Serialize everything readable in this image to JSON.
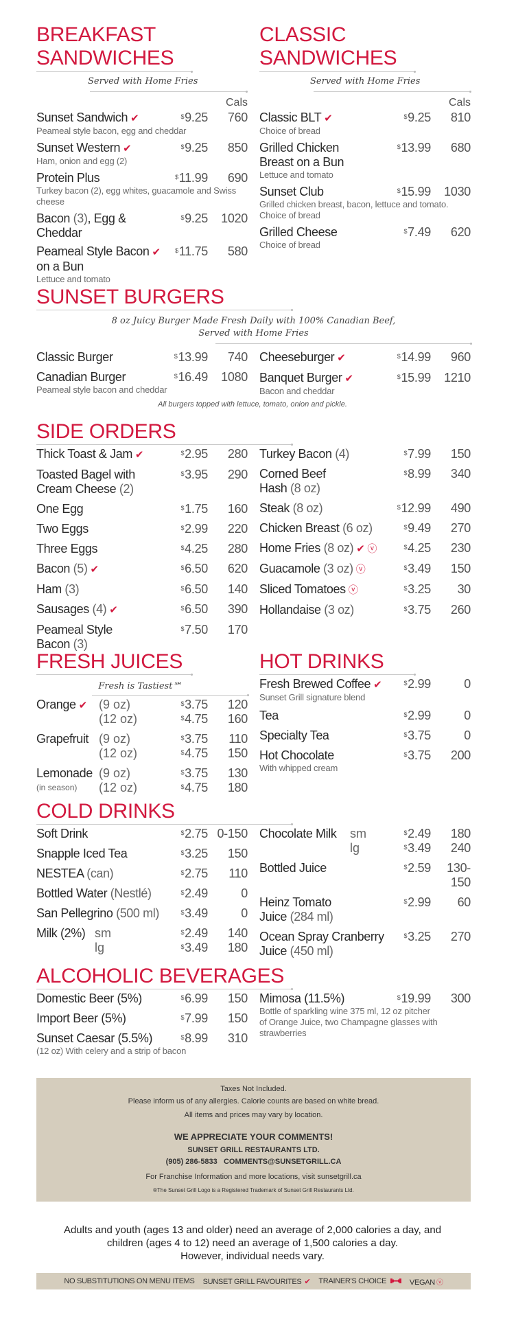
{
  "currency": "$",
  "cals_label": "Cals",
  "colors": {
    "accent": "#d2193f",
    "panel": "#d5cdbd"
  },
  "breakfast": {
    "title": "BREAKFAST\nSANDWICHES",
    "subtitle": "Served with Home Fries",
    "items": [
      {
        "name": "Sunset Sandwich",
        "fav": true,
        "price": "9.25",
        "cals": "760",
        "desc": "Peameal style bacon, egg and cheddar"
      },
      {
        "name": "Sunset Western",
        "fav": true,
        "price": "9.25",
        "cals": "850",
        "desc": "Ham, onion and egg (2)"
      },
      {
        "name": "Protein Plus",
        "price": "11.99",
        "cals": "690",
        "desc": "Turkey bacon (2), egg whites, guacamole and Swiss\ncheese"
      },
      {
        "name": "Bacon ",
        "note": "(3)",
        "rest": ", Egg &\nCheddar",
        "price": "9.25",
        "cals": "1020"
      },
      {
        "name": "Peameal Style Bacon",
        "fav": true,
        "tail": "\non a Bun",
        "price": "11.75",
        "cals": "580",
        "desc": "Lettuce and tomato"
      }
    ]
  },
  "classic": {
    "title": "CLASSIC\nSANDWICHES",
    "subtitle": "Served with Home Fries",
    "items": [
      {
        "name": "Classic BLT",
        "fav": true,
        "price": "9.25",
        "cals": "810",
        "desc": "Choice of bread"
      },
      {
        "name": "Grilled Chicken\nBreast on a Bun",
        "price": "13.99",
        "cals": "680",
        "desc": "Lettuce and tomato"
      },
      {
        "name": "Sunset Club",
        "price": "15.99",
        "cals": "1030",
        "desc": "Grilled chicken breast, bacon, lettuce and tomato.\nChoice of bread"
      },
      {
        "name": "Grilled Cheese",
        "price": "7.49",
        "cals": "620",
        "desc": "Choice of bread"
      }
    ]
  },
  "burgers": {
    "title": "SUNSET BURGERS",
    "subtitle": "8 oz Juicy Burger Made Fresh Daily with 100% Canadian Beef,\nServed with Home Fries",
    "left": [
      {
        "name": "Classic Burger",
        "price": "13.99",
        "cals": "740"
      },
      {
        "name": "Canadian Burger",
        "price": "16.49",
        "cals": "1080",
        "desc": "Peameal style bacon and cheddar"
      }
    ],
    "right": [
      {
        "name": "Cheeseburger",
        "fav": true,
        "price": "14.99",
        "cals": "960"
      },
      {
        "name": "Banquet Burger",
        "fav": true,
        "price": "15.99",
        "cals": "1210",
        "desc": "Bacon and cheddar"
      }
    ],
    "note": "All burgers topped with lettuce, tomato, onion and pickle."
  },
  "sides": {
    "title": "SIDE ORDERS",
    "left": [
      {
        "name": "Thick Toast & Jam",
        "fav": true,
        "price": "2.95",
        "cals": "280"
      },
      {
        "name": "Toasted Bagel with\nCream Cheese ",
        "note": "(2)",
        "price": "3.95",
        "cals": "290"
      },
      {
        "name": "One Egg",
        "price": "1.75",
        "cals": "160"
      },
      {
        "name": "Two Eggs",
        "price": "2.99",
        "cals": "220"
      },
      {
        "name": "Three Eggs",
        "price": "4.25",
        "cals": "280"
      },
      {
        "name": "Bacon ",
        "note": "(5)",
        "fav": true,
        "price": "6.50",
        "cals": "620"
      },
      {
        "name": "Ham ",
        "note": "(3)",
        "price": "6.50",
        "cals": "140"
      },
      {
        "name": "Sausages ",
        "note": "(4)",
        "fav": true,
        "price": "6.50",
        "cals": "390"
      },
      {
        "name": "Peameal Style\nBacon ",
        "note": "(3)",
        "price": "7.50",
        "cals": "170"
      }
    ],
    "right": [
      {
        "name": "Turkey Bacon ",
        "note": "(4)",
        "price": "7.99",
        "cals": "150"
      },
      {
        "name": "Corned Beef\nHash ",
        "note": "(8 oz)",
        "price": "8.99",
        "cals": "340"
      },
      {
        "name": "Steak ",
        "note": "(8 oz)",
        "price": "12.99",
        "cals": "490"
      },
      {
        "name": "Chicken Breast ",
        "note": "(6 oz)",
        "price": "9.49",
        "cals": "270"
      },
      {
        "name": "Home Fries ",
        "note": "(8 oz)",
        "fav": true,
        "vegan": true,
        "price": "4.25",
        "cals": "230"
      },
      {
        "name": "Guacamole ",
        "note": "(3 oz)",
        "vegan": true,
        "price": "3.49",
        "cals": "150"
      },
      {
        "name": "Sliced Tomatoes",
        "vegan": true,
        "price": "3.25",
        "cals": "30"
      },
      {
        "name": "Hollandaise ",
        "note": "(3 oz)",
        "price": "3.75",
        "cals": "260"
      }
    ]
  },
  "juices": {
    "title": "FRESH JUICES",
    "subtitle": "Fresh is Tastiest℠",
    "items": [
      {
        "name": "Orange",
        "fav": true,
        "sizes": [
          {
            "size": "(9 oz)",
            "price": "3.75",
            "cals": "120"
          },
          {
            "size": "(12 oz)",
            "price": "4.75",
            "cals": "160"
          }
        ]
      },
      {
        "name": "Grapefruit",
        "sizes": [
          {
            "size": "(9 oz)",
            "price": "3.75",
            "cals": "110"
          },
          {
            "size": "(12 oz)",
            "price": "4.75",
            "cals": "150"
          }
        ]
      },
      {
        "name": "Lemonade",
        "sub": "(in season)",
        "sizes": [
          {
            "size": "(9 oz)",
            "price": "3.75",
            "cals": "130"
          },
          {
            "size": "(12 oz)",
            "price": "4.75",
            "cals": "180"
          }
        ]
      }
    ]
  },
  "hot": {
    "title": "HOT DRINKS",
    "items": [
      {
        "name": "Fresh Brewed Coffee",
        "fav": true,
        "price": "2.99",
        "cals": "0",
        "desc": "Sunset Grill signature blend"
      },
      {
        "name": "Tea",
        "price": "2.99",
        "cals": "0"
      },
      {
        "name": "Specialty Tea",
        "price": "3.75",
        "cals": "0"
      },
      {
        "name": "Hot Chocolate",
        "price": "3.75",
        "cals": "200",
        "desc": "With whipped cream"
      }
    ]
  },
  "cold": {
    "title": "COLD DRINKS",
    "left": [
      {
        "name": "Soft Drink",
        "price": "2.75",
        "cals": "0-150"
      },
      {
        "name": "Snapple Iced Tea",
        "price": "3.25",
        "cals": "150"
      },
      {
        "name": "NESTEA ",
        "note": "(can)",
        "price": "2.75",
        "cals": "110"
      },
      {
        "name": "Bottled Water ",
        "note": "(Nestlé)",
        "price": "2.49",
        "cals": "0"
      },
      {
        "name": "San Pellegrino ",
        "note": "(500 ml)",
        "price": "3.49",
        "cals": "0"
      },
      {
        "name": "Milk (2%)",
        "sizes": [
          {
            "size": "sm",
            "price": "2.49",
            "cals": "140"
          },
          {
            "size": "lg",
            "price": "3.49",
            "cals": "180"
          }
        ]
      }
    ],
    "right": [
      {
        "name": "Chocolate Milk",
        "sizes": [
          {
            "size": "sm",
            "price": "2.49",
            "cals": "180"
          },
          {
            "size": "lg",
            "price": "3.49",
            "cals": "240"
          }
        ]
      },
      {
        "name": "Bottled Juice",
        "price": "2.59",
        "cals": "130-\n150"
      },
      {
        "name": "Heinz Tomato\nJuice ",
        "note": "(284 ml)",
        "price": "2.99",
        "cals": "60"
      },
      {
        "name": "Ocean Spray Cranberry\nJuice ",
        "note": "(450 ml)",
        "price": "3.25",
        "cals": "270"
      }
    ]
  },
  "alcohol": {
    "title": "ALCOHOLIC BEVERAGES",
    "left": [
      {
        "name": "Domestic Beer (5%)",
        "price": "6.99",
        "cals": "150"
      },
      {
        "name": "Import Beer (5%)",
        "price": "7.99",
        "cals": "150"
      },
      {
        "name": "Sunset Caesar (5.5%)",
        "price": "8.99",
        "cals": "310",
        "desc": "(12 oz) With celery and a strip of bacon"
      }
    ],
    "right": [
      {
        "name": "Mimosa (11.5%)",
        "price": "19.99",
        "cals": "300",
        "desc": "Bottle of sparkling wine 375 ml, 12 oz pitcher\nof Orange Juice, two Champagne glasses with\nstrawberries"
      }
    ]
  },
  "info": {
    "taxes": "Taxes Not Included.",
    "allergies": "Please inform us of any allergies. Calorie counts are based on white bread.",
    "vary": "All items and prices may vary by location.",
    "comments": "WE APPRECIATE YOUR COMMENTS!",
    "company": "SUNSET GRILL RESTAURANTS LTD.",
    "phone": "(905) 286-5833",
    "email": "COMMENTS@SUNSETGRILL.CA",
    "franchise": "For Franchise Information and more locations, visit sunsetgrill.ca",
    "trademark": "®The Sunset Grill Logo is a Registered Trademark of Sunset Grill Restaurants Ltd."
  },
  "calorie_message": {
    "line1": "Adults and youth (ages 13 and older) need an average of 2,000 calories a day, and",
    "line2": "children (ages 4 to 12) need an average of 1,500 calories a day.",
    "line3": "However, individual needs vary."
  },
  "legend": {
    "no_subs": "NO SUBSTITUTIONS ON MENU ITEMS",
    "favourites": "SUNSET GRILL FAVOURITES",
    "trainer": "TRAINER'S CHOICE",
    "vegan": "VEGAN",
    "icons": {
      "favourite": "checkmark-icon",
      "trainer": "dumbbell-icon",
      "vegan": "circled-v-icon"
    }
  }
}
